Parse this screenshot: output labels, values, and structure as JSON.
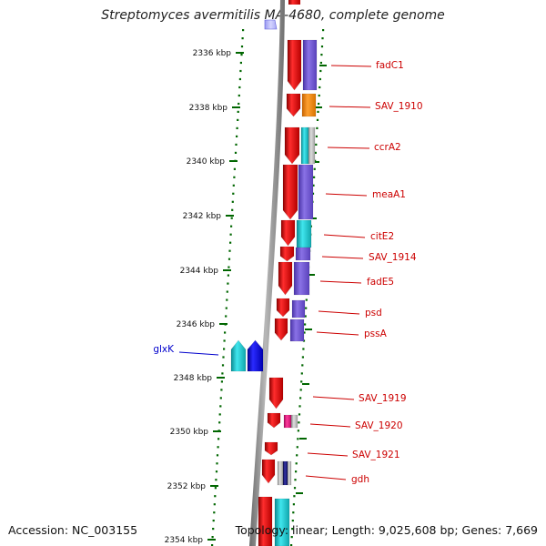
{
  "genome": {
    "title": "Streptomyces avermitilis MA-4680, complete genome",
    "accession_label": "Accession: NC_003155",
    "summary_label": "Topology: linear; Length: 9,025,608 bp; Genes: 7,669"
  },
  "axis": {
    "unit": "kbp",
    "ticks": [
      {
        "label": "2336 kbp",
        "kbp": 2336
      },
      {
        "label": "2338 kbp",
        "kbp": 2338
      },
      {
        "label": "2340 kbp",
        "kbp": 2340
      },
      {
        "label": "2342 kbp",
        "kbp": 2342
      },
      {
        "label": "2344 kbp",
        "kbp": 2344
      },
      {
        "label": "2346 kbp",
        "kbp": 2346
      },
      {
        "label": "2348 kbp",
        "kbp": 2348
      },
      {
        "label": "2350 kbp",
        "kbp": 2350
      },
      {
        "label": "2352 kbp",
        "kbp": 2352
      },
      {
        "label": "2354 kbp",
        "kbp": 2354
      }
    ]
  },
  "colors": {
    "forward_gene": "#e8141b",
    "reverse_gene": "#1515d8",
    "forward_label": "#cc0000",
    "reverse_label": "#0000cc",
    "tick": "#006600",
    "backbone": "#8c8c8c",
    "function_purple": "#7257d0",
    "function_orange": "#f58a0c",
    "function_cyan": "#14c0c8",
    "function_gray": "#b9b9b9",
    "function_pink": "#e6167e",
    "function_navy": "#1b1b72"
  },
  "genes": [
    {
      "name": "fadC1",
      "strand": "forward"
    },
    {
      "name": "SAV_1910",
      "strand": "forward"
    },
    {
      "name": "ccrA2",
      "strand": "forward"
    },
    {
      "name": "meaA1",
      "strand": "forward"
    },
    {
      "name": "citE2",
      "strand": "forward"
    },
    {
      "name": "SAV_1914",
      "strand": "forward"
    },
    {
      "name": "fadE5",
      "strand": "forward"
    },
    {
      "name": "psd",
      "strand": "forward"
    },
    {
      "name": "pssA",
      "strand": "forward"
    },
    {
      "name": "glxK",
      "strand": "reverse"
    },
    {
      "name": "SAV_1919",
      "strand": "forward"
    },
    {
      "name": "SAV_1920",
      "strand": "forward"
    },
    {
      "name": "SAV_1921",
      "strand": "forward"
    },
    {
      "name": "gdh",
      "strand": "forward"
    }
  ]
}
